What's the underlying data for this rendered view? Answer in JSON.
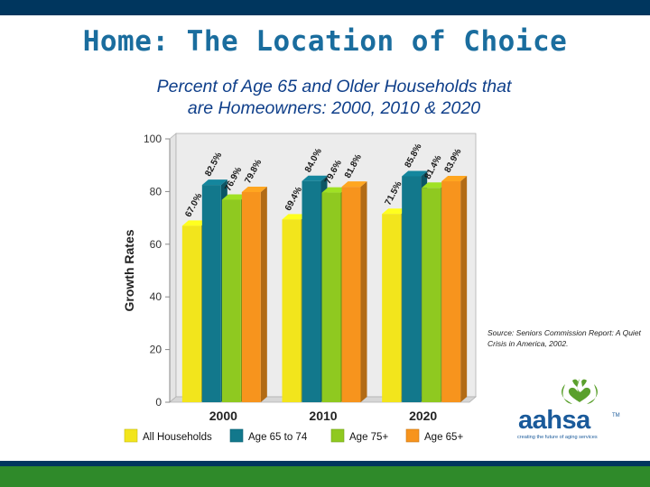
{
  "slide": {
    "title": "Home: The Location of Choice",
    "source_note": "Source: Seniors Commission Report: A Quiet Crisis in America, 2002.",
    "logo": {
      "name": "aahsa",
      "tm": "TM",
      "tagline": "creating the future of aging services"
    }
  },
  "chart_data": {
    "type": "bar",
    "title_lines": [
      "Percent of Age 65 and Older Households that",
      "are Homeowners: 2000, 2010 & 2020"
    ],
    "xlabel": "",
    "ylabel": "Growth Rates",
    "ylim": [
      0,
      100
    ],
    "yticks": [
      0,
      20,
      40,
      60,
      80,
      100
    ],
    "categories": [
      "2000",
      "2010",
      "2020"
    ],
    "series": [
      {
        "name": "All Households",
        "color": "#f2e51c",
        "values": [
          67.0,
          69.4,
          71.5
        ],
        "labels": [
          "67.0%",
          "69.4%",
          "71.5%"
        ]
      },
      {
        "name": "Age 65 to 74",
        "color": "#12788c",
        "values": [
          82.5,
          84.0,
          85.8
        ],
        "labels": [
          "82.5%",
          "84.0%",
          "85.8%"
        ]
      },
      {
        "name": "Age 75+",
        "color": "#8fc920",
        "values": [
          76.9,
          79.6,
          81.4
        ],
        "labels": [
          "76.9%",
          "79.6%",
          "81.4%"
        ]
      },
      {
        "name": "Age 65+",
        "color": "#f7941d",
        "values": [
          79.8,
          81.8,
          83.9
        ],
        "labels": [
          "79.8%",
          "81.8%",
          "83.9%"
        ]
      }
    ],
    "grid": false,
    "legend_position": "bottom",
    "style": "3d"
  }
}
